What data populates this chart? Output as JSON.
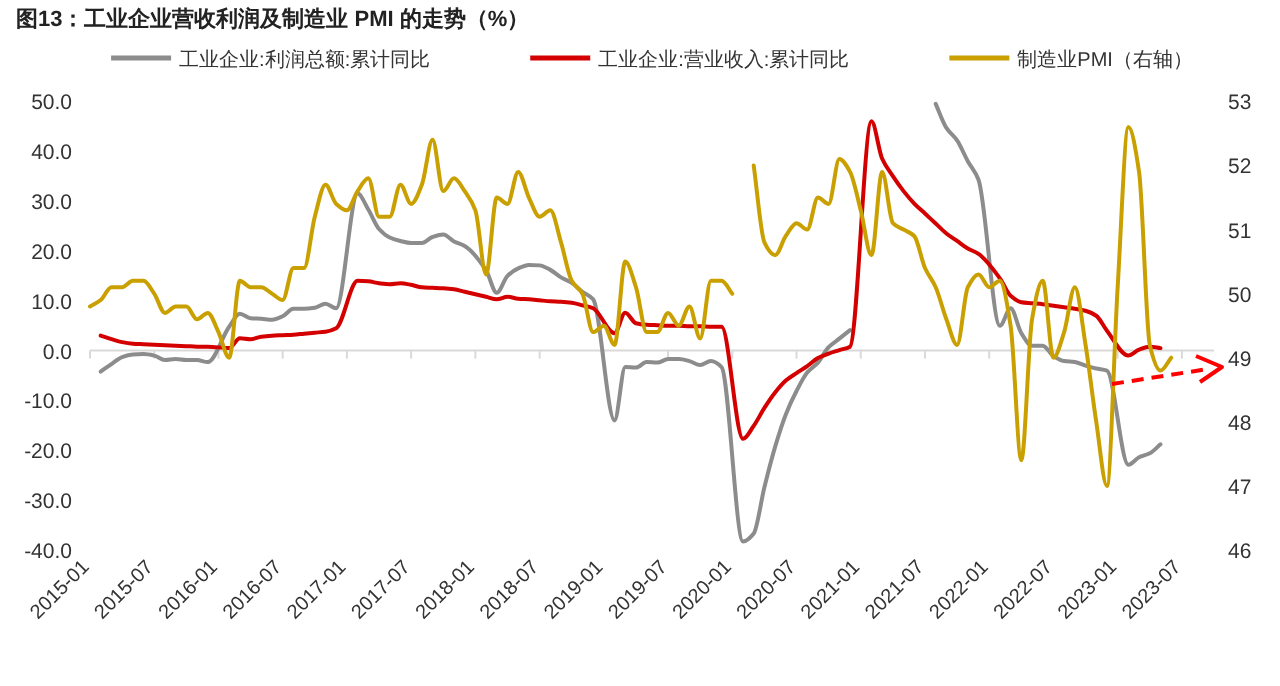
{
  "chart_data": {
    "type": "line",
    "title": "图13：工业企业营收利润及制造业 PMI 的走势（%）",
    "xlim": [
      "2015-01",
      "2023-10"
    ],
    "xticks": [
      "2015-01",
      "2015-07",
      "2016-01",
      "2016-07",
      "2017-01",
      "2017-07",
      "2018-01",
      "2018-07",
      "2019-01",
      "2019-07",
      "2020-01",
      "2020-07",
      "2021-01",
      "2021-07",
      "2022-01",
      "2022-07",
      "2023-01",
      "2023-07"
    ],
    "ylim": [
      -40,
      50
    ],
    "yticks": [
      {
        "value": -40,
        "label": "-40.0"
      },
      {
        "value": -30,
        "label": "-30.0"
      },
      {
        "value": -20,
        "label": "-20.0"
      },
      {
        "value": -10,
        "label": "-10.0"
      },
      {
        "value": 0,
        "label": "0.0"
      },
      {
        "value": 10,
        "label": "10.0"
      },
      {
        "value": 20,
        "label": "20.0"
      },
      {
        "value": 30,
        "label": "30.0"
      },
      {
        "value": 40,
        "label": "40.0"
      },
      {
        "value": 50,
        "label": "50.0"
      }
    ],
    "y2lim": [
      46,
      53
    ],
    "y2ticks": [
      46,
      47,
      48,
      49,
      50,
      51,
      52,
      53
    ],
    "legend": "top",
    "series": [
      {
        "name": "工业企业:利润总额:累计同比",
        "color": "#8c8c8c",
        "x": [
          "2015-02",
          "2015-03",
          "2015-04",
          "2015-05",
          "2015-06",
          "2015-07",
          "2015-08",
          "2015-09",
          "2015-10",
          "2015-11",
          "2015-12",
          "2016-02",
          "2016-03",
          "2016-04",
          "2016-05",
          "2016-06",
          "2016-07",
          "2016-08",
          "2016-09",
          "2016-10",
          "2016-11",
          "2016-12",
          "2017-02",
          "2017-03",
          "2017-04",
          "2017-05",
          "2017-06",
          "2017-07",
          "2017-08",
          "2017-09",
          "2017-10",
          "2017-11",
          "2017-12",
          "2018-02",
          "2018-03",
          "2018-04",
          "2018-05",
          "2018-06",
          "2018-07",
          "2018-08",
          "2018-09",
          "2018-10",
          "2018-11",
          "2018-12",
          "2019-02",
          "2019-03",
          "2019-04",
          "2019-05",
          "2019-06",
          "2019-07",
          "2019-08",
          "2019-09",
          "2019-10",
          "2019-11",
          "2019-12",
          "2020-02",
          "2020-03",
          "2020-04",
          "2020-05",
          "2020-06",
          "2020-07",
          "2020-08",
          "2020-09",
          "2020-10",
          "2020-11",
          "2020-12",
          "2021-02",
          "2021-03",
          "2021-04",
          "2021-05",
          "2021-06",
          "2021-07",
          "2021-08",
          "2021-09",
          "2021-10",
          "2021-11",
          "2021-12",
          "2022-02",
          "2022-03",
          "2022-04",
          "2022-05",
          "2022-06",
          "2022-07",
          "2022-08",
          "2022-09",
          "2022-10",
          "2022-11",
          "2022-12",
          "2023-02",
          "2023-03",
          "2023-04",
          "2023-05"
        ],
        "values": [
          -4.2,
          -2.7,
          -1.3,
          -0.8,
          -0.7,
          -1.0,
          -1.9,
          -1.7,
          -1.9,
          -1.9,
          -2.3,
          4.8,
          7.4,
          6.5,
          6.4,
          6.2,
          6.9,
          8.4,
          8.4,
          8.6,
          9.4,
          8.5,
          31.5,
          28.3,
          24.4,
          22.7,
          22.0,
          21.6,
          21.6,
          22.8,
          23.3,
          21.9,
          21.0,
          16.1,
          11.6,
          15.0,
          16.5,
          17.2,
          17.1,
          16.2,
          14.7,
          13.6,
          11.8,
          10.3,
          -14.0,
          -3.3,
          -3.4,
          -2.3,
          -2.4,
          -1.7,
          -1.7,
          -2.1,
          -2.9,
          -2.1,
          -3.3,
          -38.3,
          -36.7,
          -27.4,
          -19.3,
          -12.8,
          -8.1,
          -4.4,
          -2.4,
          0.7,
          2.4,
          4.1,
          null,
          null,
          null,
          null,
          null,
          null,
          49.5,
          44.7,
          42.2,
          38.0,
          34.3,
          5.0,
          8.5,
          3.5,
          1.0,
          1.0,
          -1.1,
          -2.1,
          -2.3,
          -3.0,
          -3.6,
          -4.0,
          -22.9,
          -21.4,
          -20.6,
          -18.8
        ]
      },
      {
        "name": "工业企业:营业收入:累计同比",
        "color": "#d40000",
        "x": [
          "2015-02",
          "2015-03",
          "2015-04",
          "2015-05",
          "2015-06",
          "2015-07",
          "2015-08",
          "2015-09",
          "2015-10",
          "2015-11",
          "2015-12",
          "2016-02",
          "2016-03",
          "2016-04",
          "2016-05",
          "2016-06",
          "2016-07",
          "2016-08",
          "2016-09",
          "2016-10",
          "2016-11",
          "2016-12",
          "2017-02",
          "2017-03",
          "2017-04",
          "2017-05",
          "2017-06",
          "2017-07",
          "2017-08",
          "2017-09",
          "2017-10",
          "2017-11",
          "2017-12",
          "2018-02",
          "2018-03",
          "2018-04",
          "2018-05",
          "2018-06",
          "2018-07",
          "2018-08",
          "2018-09",
          "2018-10",
          "2018-11",
          "2018-12",
          "2019-02",
          "2019-03",
          "2019-04",
          "2019-05",
          "2019-06",
          "2019-07",
          "2019-08",
          "2019-09",
          "2019-10",
          "2019-11",
          "2019-12",
          "2020-02",
          "2020-03",
          "2020-04",
          "2020-05",
          "2020-06",
          "2020-07",
          "2020-08",
          "2020-09",
          "2020-10",
          "2020-11",
          "2020-12",
          "2021-02",
          "2021-03",
          "2021-04",
          "2021-05",
          "2021-06",
          "2021-07",
          "2021-08",
          "2021-09",
          "2021-10",
          "2021-11",
          "2021-12",
          "2022-02",
          "2022-03",
          "2022-04",
          "2022-05",
          "2022-06",
          "2022-07",
          "2022-08",
          "2022-09",
          "2022-10",
          "2022-11",
          "2022-12",
          "2023-02",
          "2023-03",
          "2023-04",
          "2023-05"
        ],
        "values": [
          3.0,
          2.3,
          1.7,
          1.4,
          1.3,
          1.2,
          1.1,
          1.0,
          0.9,
          0.8,
          0.8,
          0.5,
          2.5,
          2.3,
          2.8,
          3.0,
          3.1,
          3.2,
          3.4,
          3.6,
          3.8,
          4.5,
          14.0,
          13.9,
          13.5,
          13.3,
          13.5,
          13.2,
          12.7,
          12.6,
          12.5,
          12.3,
          11.8,
          10.8,
          10.3,
          10.8,
          10.4,
          10.3,
          10.1,
          9.9,
          9.8,
          9.6,
          9.1,
          8.5,
          3.5,
          7.6,
          5.5,
          5.2,
          5.1,
          5.0,
          5.0,
          4.9,
          4.9,
          4.8,
          4.8,
          -17.7,
          -15.1,
          -11.5,
          -8.4,
          -6.0,
          -4.5,
          -3.1,
          -1.5,
          -0.6,
          0.1,
          0.8,
          46.0,
          38.5,
          35.0,
          32.0,
          29.5,
          27.5,
          25.5,
          23.5,
          22.0,
          20.5,
          19.4,
          14.5,
          11.0,
          9.7,
          9.5,
          9.3,
          9.0,
          8.7,
          8.4,
          8.0,
          7.0,
          4.0,
          -1.0,
          0.2,
          0.8,
          0.5
        ]
      },
      {
        "name": "制造业PMI（右轴）",
        "color": "#c9a000",
        "axis": "y2",
        "x": [
          "2015-01",
          "2015-02",
          "2015-03",
          "2015-04",
          "2015-05",
          "2015-06",
          "2015-07",
          "2015-08",
          "2015-09",
          "2015-10",
          "2015-11",
          "2015-12",
          "2016-01",
          "2016-02",
          "2016-03",
          "2016-04",
          "2016-05",
          "2016-06",
          "2016-07",
          "2016-08",
          "2016-09",
          "2016-10",
          "2016-11",
          "2016-12",
          "2017-01",
          "2017-02",
          "2017-03",
          "2017-04",
          "2017-05",
          "2017-06",
          "2017-07",
          "2017-08",
          "2017-09",
          "2017-10",
          "2017-11",
          "2017-12",
          "2018-01",
          "2018-02",
          "2018-03",
          "2018-04",
          "2018-05",
          "2018-06",
          "2018-07",
          "2018-08",
          "2018-09",
          "2018-10",
          "2018-11",
          "2018-12",
          "2019-01",
          "2019-02",
          "2019-03",
          "2019-04",
          "2019-05",
          "2019-06",
          "2019-07",
          "2019-08",
          "2019-09",
          "2019-10",
          "2019-11",
          "2019-12",
          "2020-01",
          "2020-02",
          "2020-03",
          "2020-04",
          "2020-05",
          "2020-06",
          "2020-07",
          "2020-08",
          "2020-09",
          "2020-10",
          "2020-11",
          "2020-12",
          "2021-01",
          "2021-02",
          "2021-03",
          "2021-04",
          "2021-05",
          "2021-06",
          "2021-07",
          "2021-08",
          "2021-09",
          "2021-10",
          "2021-11",
          "2021-12",
          "2022-01",
          "2022-02",
          "2022-03",
          "2022-04",
          "2022-05",
          "2022-06",
          "2022-07",
          "2022-08",
          "2022-09",
          "2022-10",
          "2022-11",
          "2022-12",
          "2023-01",
          "2023-02",
          "2023-03",
          "2023-04",
          "2023-05",
          "2023-06"
        ],
        "values": [
          49.8,
          49.9,
          50.1,
          50.1,
          50.2,
          50.2,
          50.0,
          49.7,
          49.8,
          49.8,
          49.6,
          49.7,
          49.4,
          49.0,
          50.2,
          50.1,
          50.1,
          50.0,
          49.9,
          50.4,
          50.4,
          51.2,
          51.7,
          51.4,
          51.3,
          51.6,
          51.8,
          51.2,
          51.2,
          51.7,
          51.4,
          51.7,
          52.4,
          51.6,
          51.8,
          51.6,
          51.3,
          50.3,
          51.5,
          51.4,
          51.9,
          51.5,
          51.2,
          51.3,
          50.8,
          50.2,
          50.0,
          49.4,
          49.5,
          49.2,
          50.5,
          50.1,
          49.4,
          49.4,
          49.7,
          49.5,
          49.8,
          49.3,
          50.2,
          50.2,
          50.0,
          null,
          52.0,
          50.8,
          50.6,
          50.9,
          51.1,
          51.0,
          51.5,
          51.4,
          52.1,
          51.9,
          51.3,
          50.6,
          51.9,
          51.1,
          51.0,
          50.9,
          50.4,
          50.1,
          49.6,
          49.2,
          50.1,
          50.3,
          50.1,
          50.2,
          49.5,
          47.4,
          49.6,
          50.2,
          49.0,
          49.4,
          50.1,
          49.2,
          48.0,
          47.0,
          50.1,
          52.6,
          51.9,
          49.2,
          48.8,
          49.0
        ]
      }
    ]
  }
}
